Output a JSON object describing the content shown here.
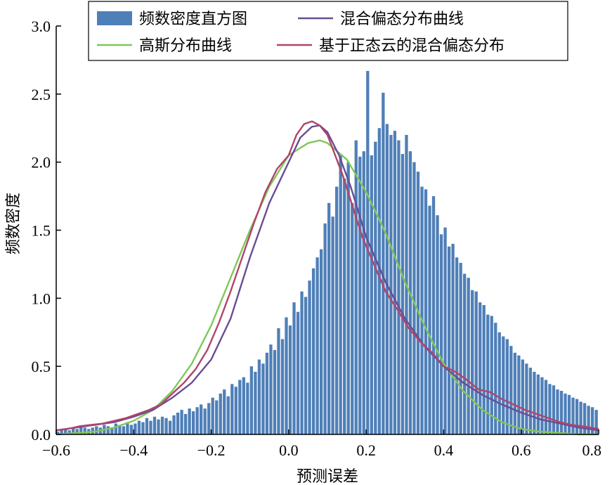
{
  "chart_data": {
    "type": "bar",
    "xlabel": "预测误差",
    "ylabel": "频数密度",
    "xlim": [
      -0.6,
      0.8
    ],
    "ylim": [
      0,
      3.0
    ],
    "x_ticks": [
      -0.6,
      -0.4,
      -0.2,
      0.0,
      0.2,
      0.4,
      0.6,
      0.8
    ],
    "x_tick_labels": [
      "−0.6",
      "−0.4",
      "−0.2",
      "0.0",
      "0.2",
      "0.4",
      "0.6",
      "0.8"
    ],
    "y_ticks": [
      0,
      0.5,
      1.0,
      1.5,
      2.0,
      2.5,
      3.0
    ],
    "y_tick_labels": [
      "0.0",
      "0.5",
      "1.0",
      "1.5",
      "2.0",
      "2.5",
      "3.0"
    ],
    "grid": false,
    "legend_position": "top-center",
    "histogram": {
      "name": "频数密度直方图",
      "color": "#4f7fb8",
      "bin_width": 0.01,
      "bin_start": -0.6,
      "values": [
        0.02,
        0.03,
        0.04,
        0.03,
        0.05,
        0.04,
        0.06,
        0.05,
        0.04,
        0.05,
        0.06,
        0.05,
        0.07,
        0.06,
        0.05,
        0.08,
        0.07,
        0.06,
        0.09,
        0.07,
        0.08,
        0.1,
        0.09,
        0.12,
        0.1,
        0.13,
        0.11,
        0.13,
        0.12,
        0.1,
        0.14,
        0.16,
        0.18,
        0.15,
        0.19,
        0.17,
        0.2,
        0.22,
        0.19,
        0.23,
        0.27,
        0.25,
        0.3,
        0.33,
        0.28,
        0.37,
        0.35,
        0.4,
        0.42,
        0.38,
        0.5,
        0.46,
        0.55,
        0.52,
        0.6,
        0.66,
        0.62,
        0.78,
        0.7,
        0.86,
        0.8,
        0.97,
        0.9,
        1.05,
        1.01,
        1.13,
        1.22,
        1.3,
        1.36,
        1.55,
        1.7,
        1.6,
        1.82,
        2.05,
        1.88,
        2.0,
        1.7,
        2.16,
        2.04,
        2.08,
        2.67,
        2.05,
        2.15,
        2.25,
        2.51,
        2.28,
        2.2,
        2.23,
        2.16,
        2.06,
        2.2,
        2.08,
        2.0,
        1.93,
        1.82,
        1.8,
        1.68,
        1.75,
        1.61,
        1.47,
        1.52,
        1.38,
        1.4,
        1.3,
        1.26,
        1.18,
        1.15,
        1.06,
        1.05,
        0.97,
        0.95,
        0.88,
        0.87,
        0.82,
        0.75,
        0.72,
        0.7,
        0.65,
        0.6,
        0.58,
        0.55,
        0.52,
        0.49,
        0.46,
        0.44,
        0.42,
        0.4,
        0.37,
        0.36,
        0.33,
        0.32,
        0.3,
        0.29,
        0.27,
        0.26,
        0.24,
        0.23,
        0.21,
        0.2,
        0.18
      ]
    },
    "series": [
      {
        "name": "混合偏态分布曲线",
        "color": "#6a4c93",
        "x": [
          -0.6,
          -0.55,
          -0.5,
          -0.45,
          -0.4,
          -0.35,
          -0.3,
          -0.25,
          -0.2,
          -0.15,
          -0.1,
          -0.05,
          0.0,
          0.03,
          0.06,
          0.08,
          0.1,
          0.13,
          0.16,
          0.2,
          0.25,
          0.3,
          0.35,
          0.4,
          0.45,
          0.5,
          0.55,
          0.6,
          0.65,
          0.7,
          0.75,
          0.8
        ],
        "y": [
          0.03,
          0.05,
          0.07,
          0.09,
          0.13,
          0.18,
          0.27,
          0.38,
          0.55,
          0.85,
          1.3,
          1.7,
          2.0,
          2.18,
          2.26,
          2.27,
          2.22,
          2.05,
          1.82,
          1.45,
          1.12,
          0.85,
          0.65,
          0.5,
          0.38,
          0.29,
          0.22,
          0.16,
          0.11,
          0.08,
          0.05,
          0.03
        ]
      },
      {
        "name": "高斯分布曲线",
        "color": "#7fc75a",
        "x": [
          -0.6,
          -0.55,
          -0.5,
          -0.45,
          -0.4,
          -0.35,
          -0.3,
          -0.25,
          -0.2,
          -0.15,
          -0.1,
          -0.05,
          0.0,
          0.05,
          0.08,
          0.1,
          0.15,
          0.2,
          0.25,
          0.3,
          0.35,
          0.4,
          0.45,
          0.5,
          0.55,
          0.6,
          0.65,
          0.7,
          0.75,
          0.8
        ],
        "y": [
          0.0,
          0.01,
          0.02,
          0.05,
          0.1,
          0.18,
          0.32,
          0.52,
          0.8,
          1.15,
          1.5,
          1.82,
          2.05,
          2.14,
          2.16,
          2.14,
          2.02,
          1.78,
          1.48,
          1.12,
          0.8,
          0.52,
          0.32,
          0.18,
          0.09,
          0.04,
          0.02,
          0.01,
          0.0,
          0.0
        ]
      },
      {
        "name": "基于正态云的混合偏态分布",
        "color": "#b0456a",
        "x": [
          -0.6,
          -0.57,
          -0.54,
          -0.51,
          -0.48,
          -0.45,
          -0.42,
          -0.39,
          -0.36,
          -0.33,
          -0.3,
          -0.27,
          -0.24,
          -0.21,
          -0.18,
          -0.15,
          -0.12,
          -0.09,
          -0.06,
          -0.03,
          0.0,
          0.02,
          0.04,
          0.06,
          0.08,
          0.1,
          0.12,
          0.14,
          0.16,
          0.19,
          0.22,
          0.25,
          0.28,
          0.31,
          0.34,
          0.37,
          0.4,
          0.43,
          0.46,
          0.49,
          0.52,
          0.55,
          0.58,
          0.61,
          0.64,
          0.67,
          0.7,
          0.73,
          0.76,
          0.8
        ],
        "y": [
          0.03,
          0.04,
          0.06,
          0.07,
          0.08,
          0.1,
          0.12,
          0.15,
          0.18,
          0.22,
          0.3,
          0.38,
          0.48,
          0.62,
          0.82,
          1.05,
          1.3,
          1.55,
          1.78,
          1.95,
          2.05,
          2.2,
          2.28,
          2.3,
          2.27,
          2.2,
          2.05,
          1.9,
          1.72,
          1.45,
          1.25,
          1.05,
          0.92,
          0.78,
          0.68,
          0.6,
          0.5,
          0.46,
          0.4,
          0.33,
          0.31,
          0.26,
          0.22,
          0.18,
          0.15,
          0.12,
          0.09,
          0.07,
          0.06,
          0.04
        ]
      }
    ]
  }
}
